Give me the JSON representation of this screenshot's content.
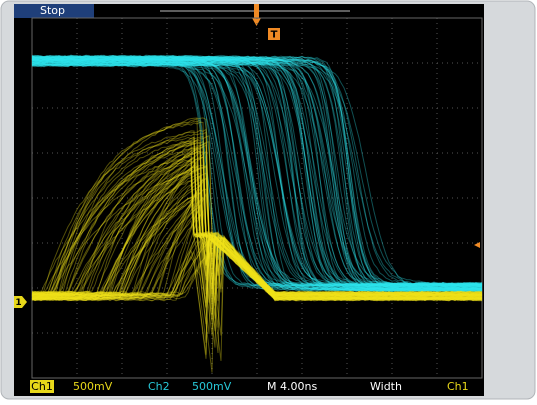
{
  "status": "Stop",
  "trigger_marker": "T",
  "channel_marker": "1",
  "status_bar": {
    "ch1_label": "Ch1",
    "ch1_scale": "500mV",
    "ch2_label": "Ch2",
    "ch2_scale": "500mV",
    "timebase": "M 4.00ns",
    "measurement": "Width",
    "source": "Ch1"
  }
}
